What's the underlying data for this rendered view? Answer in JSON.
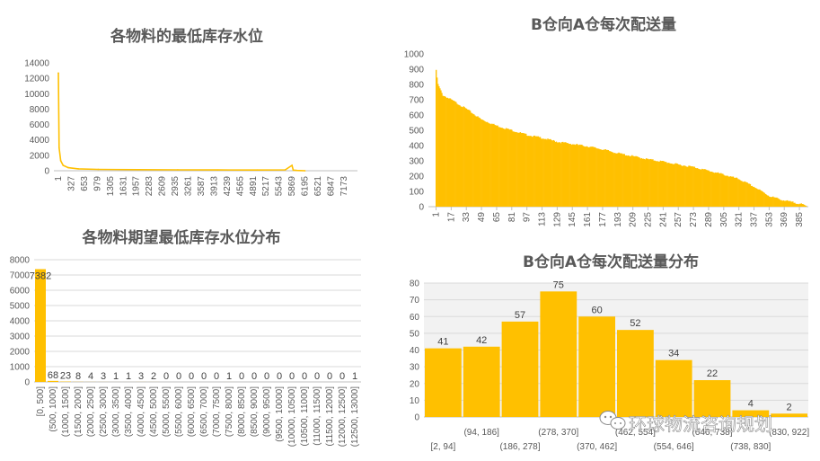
{
  "colors": {
    "bar": "#FFC000",
    "grid": "#D9D9D9",
    "axis": "#BFBFBF",
    "panel": "#F2F2F2"
  },
  "watermark": {
    "icon": "wechat-icon",
    "text": "环球物流咨询规划"
  },
  "chart_data": [
    {
      "type": "line",
      "title": "各物料的最低库存水位",
      "ylim": [
        0,
        14000
      ],
      "yticks": [
        0,
        2000,
        4000,
        6000,
        8000,
        10000,
        12000,
        14000
      ],
      "x_tick_labels": [
        "1",
        "327",
        "653",
        "979",
        "1305",
        "1631",
        "1957",
        "2283",
        "2609",
        "2935",
        "3261",
        "3587",
        "3913",
        "4239",
        "4565",
        "4891",
        "5217",
        "5543",
        "5869",
        "6195",
        "6521",
        "6847",
        "7173"
      ],
      "x": [
        1,
        20,
        60,
        120,
        250,
        500,
        1000,
        2000,
        3000,
        4000,
        5000,
        5700,
        5869,
        5900,
        6000,
        6195
      ],
      "values": [
        12700,
        3000,
        1300,
        700,
        400,
        250,
        180,
        140,
        120,
        100,
        90,
        120,
        700,
        80,
        30,
        0
      ]
    },
    {
      "type": "bar",
      "title": "B仓向A仓每次配送量",
      "ylim": [
        0,
        1000
      ],
      "yticks": [
        0,
        100,
        200,
        300,
        400,
        500,
        600,
        700,
        800,
        900,
        1000
      ],
      "x_tick_labels": [
        "1",
        "17",
        "33",
        "49",
        "65",
        "81",
        "97",
        "113",
        "129",
        "145",
        "161",
        "177",
        "193",
        "209",
        "225",
        "241",
        "257",
        "273",
        "289",
        "305",
        "321",
        "337",
        "353",
        "369",
        "385"
      ],
      "n": 392,
      "x": [
        1,
        3,
        8,
        17,
        33,
        49,
        65,
        81,
        97,
        113,
        129,
        145,
        161,
        177,
        193,
        209,
        225,
        241,
        257,
        273,
        289,
        305,
        321,
        337,
        353,
        369,
        385,
        392
      ],
      "values": [
        890,
        800,
        730,
        700,
        640,
        570,
        530,
        500,
        470,
        450,
        425,
        410,
        395,
        375,
        350,
        330,
        310,
        295,
        275,
        260,
        235,
        210,
        180,
        130,
        70,
        40,
        20,
        5
      ]
    },
    {
      "type": "bar",
      "title": "各物料期望最低库存水位分布",
      "ylim": [
        0,
        8000
      ],
      "yticks": [
        0,
        1000,
        2000,
        3000,
        4000,
        5000,
        6000,
        7000,
        8000
      ],
      "categories": [
        "[0, 500]",
        "(500, 1000]",
        "(1000, 1500]",
        "(1500, 2000]",
        "(2000, 2500]",
        "(2500, 3000]",
        "(3000, 3500]",
        "(3500, 4000]",
        "(4000, 4500]",
        "(4500, 5000]",
        "(5000, 5500]",
        "(5500, 6000]",
        "(6000, 6500]",
        "(6500, 7000]",
        "(7000, 7500]",
        "(7500, 8000]",
        "(8000, 8500]",
        "(8500, 9000]",
        "(9000, 9500]",
        "(9500, 10000]",
        "(10000, 10500]",
        "(10500, 11000]",
        "(11000, 11500]",
        "(11500, 12000]",
        "(12000, 12500]",
        "(12500, 13000]"
      ],
      "values": [
        7382,
        68,
        23,
        8,
        4,
        3,
        1,
        1,
        3,
        2,
        0,
        0,
        0,
        0,
        0,
        1,
        0,
        0,
        0,
        0,
        0,
        0,
        0,
        0,
        0,
        1
      ]
    },
    {
      "type": "bar",
      "title": "B仓向A仓每次配送量分布",
      "ylim": [
        0,
        80
      ],
      "yticks": [
        0,
        10,
        20,
        30,
        40,
        50,
        60,
        70,
        80
      ],
      "categories": [
        "[2, 94]",
        "(94, 186]",
        "(186, 278]",
        "(278, 370]",
        "(370, 462]",
        "(462, 554]",
        "(554, 646]",
        "(646, 738]",
        "(738, 830]",
        "(830, 922]"
      ],
      "values": [
        41,
        42,
        57,
        75,
        60,
        52,
        34,
        22,
        4,
        2
      ]
    }
  ]
}
